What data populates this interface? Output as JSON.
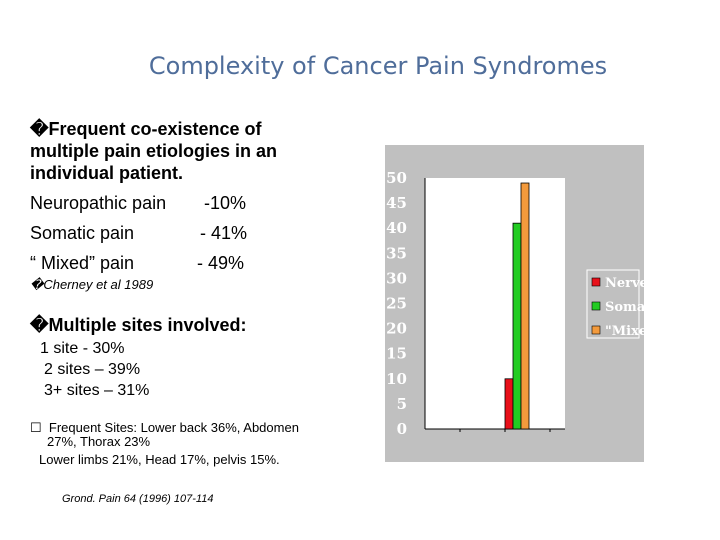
{
  "title": "Complexity of Cancer Pain Syndromes",
  "bullet1": {
    "marker": "�",
    "lines": [
      "Frequent co-existence of",
      "multiple pain etiologies in  an",
      "individual patient."
    ]
  },
  "stats": [
    {
      "label": "Neuropathic pain",
      "value": "-10%"
    },
    {
      "label": "Somatic pain",
      "value": "- 41%"
    },
    {
      "label": "“ Mixed” pain",
      "value": "- 49%"
    }
  ],
  "citation1": "�Cherney et al 1989",
  "bullet2": "�Multiple sites involved:",
  "sites": [
    "1 site  - 30%",
    "2 sites – 39%",
    "3+ sites – 31%"
  ],
  "bullet3": {
    "marker": "☐",
    "line1": "Frequent Sites: Lower back 36%,  Abdomen",
    "line2": "27%, Thorax 23%",
    "line3": "Lower limbs 21%, Head 17%, pelvis 15%."
  },
  "citation2": "Grond. Pain 64 (1996) 107-114",
  "chart_data": {
    "type": "bar",
    "categories": [
      "Nerve",
      "Somatic",
      "\"Mixed\""
    ],
    "values": [
      10,
      41,
      49
    ],
    "colors": [
      "#e8101a",
      "#22cc22",
      "#f39a3c"
    ],
    "ylim": [
      0,
      50
    ],
    "yticks": [
      "0",
      "5",
      "10",
      "15",
      "20",
      "25",
      "30",
      "35",
      "40",
      "45",
      "50"
    ],
    "legend_position": "right",
    "background": "#c0c0c0"
  }
}
